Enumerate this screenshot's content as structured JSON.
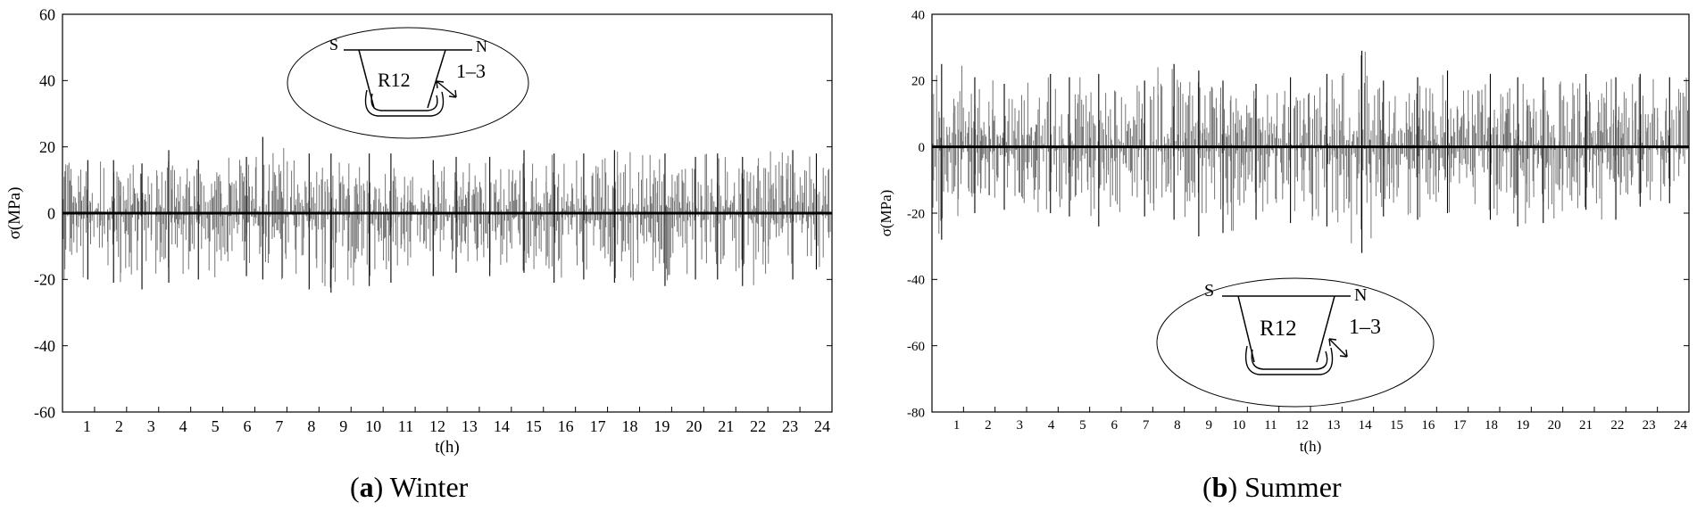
{
  "chart_data": [
    {
      "type": "line",
      "panel_letter": "a",
      "caption": "Winter",
      "xlabel": "t(h)",
      "ylabel": "σ(MPa)",
      "xlim": [
        0,
        24
      ],
      "ylim": [
        -60,
        60
      ],
      "xticks": [
        1,
        2,
        3,
        4,
        5,
        6,
        7,
        8,
        9,
        10,
        11,
        12,
        13,
        14,
        15,
        16,
        17,
        18,
        19,
        20,
        21,
        22,
        23,
        24
      ],
      "yticks": [
        -60,
        -40,
        -20,
        0,
        20,
        40,
        60
      ],
      "grid": false,
      "series_color": "#000000",
      "hourly_peaks": [
        {
          "t": 1,
          "max": 16,
          "min": -20
        },
        {
          "t": 2,
          "max": 16,
          "min": -21
        },
        {
          "t": 3,
          "max": 15,
          "min": -23
        },
        {
          "t": 4,
          "max": 19,
          "min": -21
        },
        {
          "t": 5,
          "max": 16,
          "min": -20
        },
        {
          "t": 6,
          "max": 17,
          "min": -19
        },
        {
          "t": 7,
          "max": 23,
          "min": -20
        },
        {
          "t": 8,
          "max": 18,
          "min": -23
        },
        {
          "t": 9,
          "max": 18,
          "min": -24
        },
        {
          "t": 10,
          "max": 18,
          "min": -22
        },
        {
          "t": 11,
          "max": 18,
          "min": -21
        },
        {
          "t": 12,
          "max": 16,
          "min": -19
        },
        {
          "t": 13,
          "max": 17,
          "min": -18
        },
        {
          "t": 14,
          "max": 17,
          "min": -19
        },
        {
          "t": 15,
          "max": 19,
          "min": -18
        },
        {
          "t": 16,
          "max": 18,
          "min": -21
        },
        {
          "t": 17,
          "max": 18,
          "min": -20
        },
        {
          "t": 18,
          "max": 19,
          "min": -21
        },
        {
          "t": 19,
          "max": 18,
          "min": -22
        },
        {
          "t": 20,
          "max": 17,
          "min": -20
        },
        {
          "t": 21,
          "max": 18,
          "min": -20
        },
        {
          "t": 22,
          "max": 17,
          "min": -22
        },
        {
          "t": 23,
          "max": 19,
          "min": -20
        },
        {
          "t": 24,
          "max": 18,
          "min": -17
        }
      ],
      "inset": {
        "labels": [
          "S",
          "N",
          "R12",
          "1–3"
        ]
      }
    },
    {
      "type": "line",
      "panel_letter": "b",
      "caption": "Summer",
      "xlabel": "t(h)",
      "ylabel": "σ(MPa)",
      "xlim": [
        0,
        24
      ],
      "ylim": [
        -80,
        40
      ],
      "xticks": [
        1,
        2,
        3,
        4,
        5,
        6,
        7,
        8,
        9,
        10,
        11,
        12,
        13,
        14,
        15,
        16,
        17,
        18,
        19,
        20,
        21,
        22,
        23,
        24
      ],
      "yticks": [
        -80,
        -60,
        -40,
        -20,
        0,
        20,
        40
      ],
      "grid": false,
      "series_color": "#000000",
      "hourly_peaks": [
        {
          "t": 1,
          "max": 25,
          "min": -28
        },
        {
          "t": 2,
          "max": 21,
          "min": -20
        },
        {
          "t": 3,
          "max": 19,
          "min": -19
        },
        {
          "t": 4,
          "max": 22,
          "min": -20
        },
        {
          "t": 5,
          "max": 21,
          "min": -21
        },
        {
          "t": 6,
          "max": 22,
          "min": -24
        },
        {
          "t": 7,
          "max": 20,
          "min": -21
        },
        {
          "t": 8,
          "max": 25,
          "min": -22
        },
        {
          "t": 9,
          "max": 23,
          "min": -27
        },
        {
          "t": 10,
          "max": 20,
          "min": -26
        },
        {
          "t": 11,
          "max": 19,
          "min": -22
        },
        {
          "t": 12,
          "max": 21,
          "min": -23
        },
        {
          "t": 13,
          "max": 22,
          "min": -24
        },
        {
          "t": 14,
          "max": 29,
          "min": -32
        },
        {
          "t": 15,
          "max": 20,
          "min": -21
        },
        {
          "t": 16,
          "max": 21,
          "min": -22
        },
        {
          "t": 17,
          "max": 23,
          "min": -20
        },
        {
          "t": 18,
          "max": 22,
          "min": -22
        },
        {
          "t": 19,
          "max": 21,
          "min": -24
        },
        {
          "t": 20,
          "max": 21,
          "min": -23
        },
        {
          "t": 21,
          "max": 22,
          "min": -19
        },
        {
          "t": 22,
          "max": 21,
          "min": -22
        },
        {
          "t": 23,
          "max": 22,
          "min": -18
        },
        {
          "t": 24,
          "max": 21,
          "min": -17
        }
      ],
      "inset": {
        "labels": [
          "S",
          "N",
          "R12",
          "1–3"
        ]
      }
    }
  ]
}
